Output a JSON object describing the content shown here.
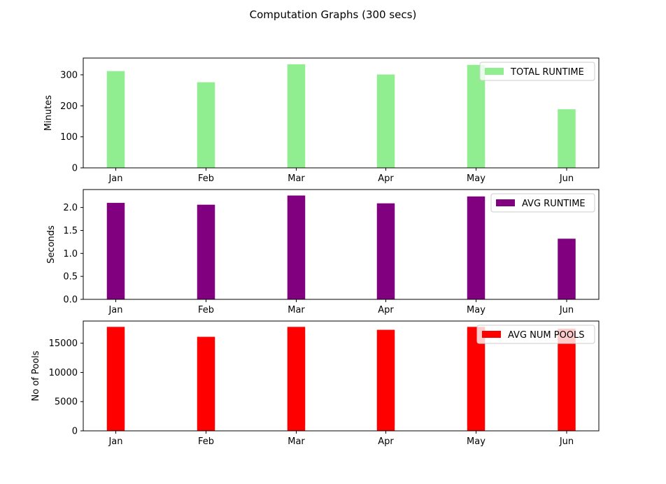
{
  "figure": {
    "title": "Computation Graphs (300 secs)"
  },
  "chart_data": [
    {
      "type": "bar",
      "categories": [
        "Jan",
        "Feb",
        "Mar",
        "Apr",
        "May",
        "Jun"
      ],
      "series": [
        {
          "name": "TOTAL RUNTIME",
          "values": [
            312,
            276,
            334,
            301,
            332,
            189
          ],
          "color": "#90ee90"
        }
      ],
      "xlabel": "",
      "ylabel": "Minutes",
      "ylim": [
        0,
        354
      ],
      "yticks": [
        0,
        100,
        200,
        300
      ],
      "legend": "upper right",
      "grid": false
    },
    {
      "type": "bar",
      "categories": [
        "Jan",
        "Feb",
        "Mar",
        "Apr",
        "May",
        "Jun"
      ],
      "series": [
        {
          "name": "AVG RUNTIME",
          "values": [
            2.1,
            2.06,
            2.26,
            2.09,
            2.24,
            1.32
          ],
          "color": "#800080"
        }
      ],
      "xlabel": "",
      "ylabel": "Seconds",
      "ylim": [
        0,
        2.39
      ],
      "yticks": [
        0.0,
        0.5,
        1.0,
        1.5,
        2.0
      ],
      "ytick_labels": [
        "0.0",
        "0.5",
        "1.0",
        "1.5",
        "2.0"
      ],
      "legend": "upper right",
      "grid": false
    },
    {
      "type": "bar",
      "categories": [
        "Jan",
        "Feb",
        "Mar",
        "Apr",
        "May",
        "Jun"
      ],
      "series": [
        {
          "name": "AVG NUM POOLS",
          "values": [
            17800,
            16100,
            17800,
            17300,
            17800,
            17500
          ],
          "color": "#ff0000"
        }
      ],
      "xlabel": "",
      "ylabel": "No of Pools",
      "ylim": [
        0,
        18800
      ],
      "yticks": [
        0,
        5000,
        10000,
        15000
      ],
      "legend": "upper right",
      "grid": false
    }
  ]
}
